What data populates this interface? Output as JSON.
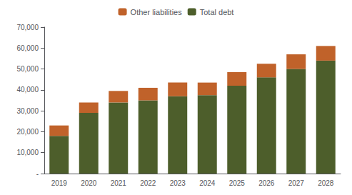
{
  "chart_data": {
    "type": "bar",
    "stacked": true,
    "categories": [
      "2019",
      "2020",
      "2021",
      "2022",
      "2023",
      "2024",
      "2025",
      "2026",
      "2027",
      "2028"
    ],
    "series": [
      {
        "name": "Total debt",
        "color": "#4d5e2b",
        "values": [
          18000,
          29000,
          34000,
          35000,
          37000,
          37500,
          42000,
          46000,
          50000,
          54000
        ]
      },
      {
        "name": "Other liabilities",
        "color": "#c0622a",
        "values": [
          5000,
          5000,
          5500,
          6000,
          6500,
          6000,
          6500,
          6500,
          7000,
          7000
        ]
      }
    ],
    "ylim": [
      0,
      70000
    ],
    "yticks": [
      {
        "value": 0,
        "label": "-"
      },
      {
        "value": 10000,
        "label": "10,000"
      },
      {
        "value": 20000,
        "label": "20,000"
      },
      {
        "value": 30000,
        "label": "30,000"
      },
      {
        "value": 40000,
        "label": "40,000"
      },
      {
        "value": 50000,
        "label": "50,000"
      },
      {
        "value": 60000,
        "label": "60,000"
      },
      {
        "value": 70000,
        "label": "70,000"
      }
    ],
    "grid": false,
    "legend": "top"
  }
}
